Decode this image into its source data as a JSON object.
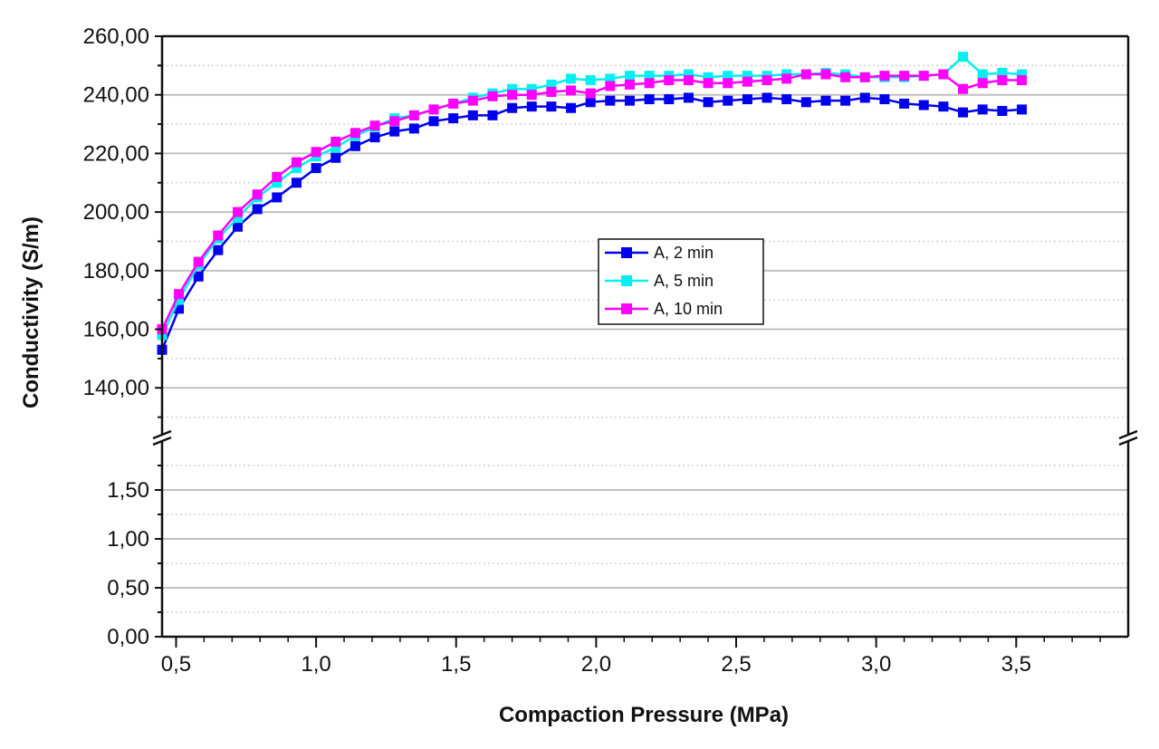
{
  "chart_data": {
    "type": "line",
    "xlabel": "Compaction Pressure (MPa)",
    "ylabel": "Conductivity (S/m)",
    "xlim": [
      0.45,
      3.9
    ],
    "x_ticks": [
      "0,5",
      "1,0",
      "1,5",
      "2,0",
      "2,5",
      "3,0",
      "3,5"
    ],
    "y_axis_break": true,
    "ylim_lower": [
      0,
      2.0
    ],
    "ylim_upper": [
      124,
      260
    ],
    "y_ticks_lower": [
      "0,00",
      "0,50",
      "1,00",
      "1,50"
    ],
    "y_ticks_upper": [
      "140,00",
      "160,00",
      "180,00",
      "200,00",
      "220,00",
      "240,00",
      "260,00"
    ],
    "grid": true,
    "legend_position": "center",
    "marker": "square",
    "x": [
      0.45,
      0.51,
      0.58,
      0.65,
      0.72,
      0.79,
      0.86,
      0.93,
      1.0,
      1.07,
      1.14,
      1.21,
      1.28,
      1.35,
      1.42,
      1.49,
      1.56,
      1.63,
      1.7,
      1.77,
      1.84,
      1.91,
      1.98,
      2.05,
      2.12,
      2.19,
      2.26,
      2.33,
      2.4,
      2.47,
      2.54,
      2.61,
      2.68,
      2.75,
      2.82,
      2.89,
      2.96,
      3.03,
      3.1,
      3.17,
      3.24,
      3.31,
      3.38,
      3.45,
      3.52
    ],
    "series": [
      {
        "name": "A, 2 min",
        "color": "#0000ee",
        "values": [
          153,
          167,
          178,
          187,
          195,
          201,
          205,
          210,
          215,
          218.5,
          222.5,
          225.5,
          227.5,
          228.5,
          231,
          232,
          233,
          233,
          235.5,
          236,
          236,
          235.5,
          237.5,
          238,
          238,
          238.5,
          238.5,
          239,
          237.5,
          238,
          238.5,
          239,
          238.5,
          237.5,
          238,
          238,
          239,
          238.5,
          237,
          236.5,
          236,
          234,
          235,
          234.5,
          235
        ]
      },
      {
        "name": "A, 5 min",
        "color": "#00f0f0",
        "values": [
          158,
          170,
          182,
          191,
          198,
          205,
          210,
          215,
          219,
          222,
          226,
          229,
          232,
          233,
          235,
          237,
          239,
          240.5,
          242,
          242,
          243.5,
          245.5,
          245,
          245.5,
          246.5,
          246.5,
          246.5,
          247,
          246,
          246.5,
          246.5,
          246.5,
          247,
          247,
          247.5,
          247,
          246,
          246,
          246,
          246.5,
          247,
          253,
          247,
          247.5,
          247
        ]
      },
      {
        "name": "A, 10 min",
        "color": "#ff00ff",
        "values": [
          160,
          172,
          183,
          192,
          200,
          206,
          212,
          217,
          220.5,
          224,
          227,
          229.5,
          231,
          233,
          235,
          237,
          238,
          239.5,
          240,
          240,
          241,
          241.5,
          240.5,
          243,
          243.5,
          244,
          245,
          245,
          244,
          244,
          244.5,
          245,
          245.5,
          247,
          247,
          246,
          246,
          246.5,
          246.5,
          246.5,
          247,
          242,
          244,
          245,
          245
        ]
      }
    ]
  }
}
